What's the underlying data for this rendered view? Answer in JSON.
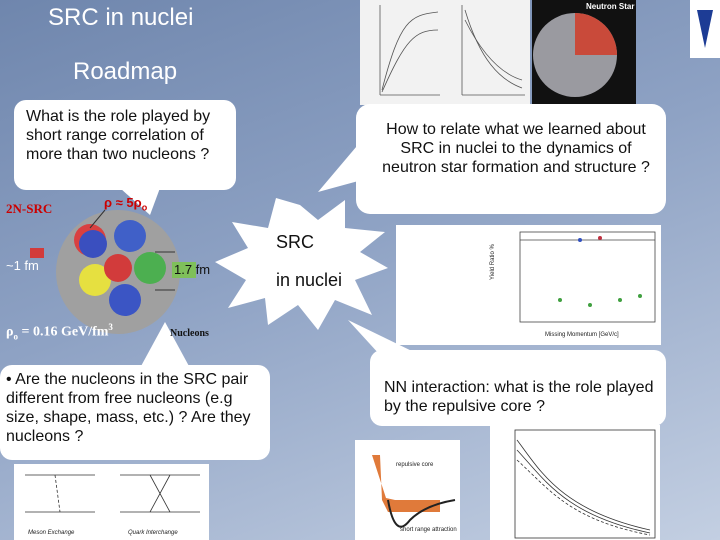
{
  "slide": {
    "title": "SRC in nuclei",
    "subtitle": "Roadmap",
    "bubbles": [
      "What is the role played by short range correlation of more than two nucleons ?",
      "How to relate what we learned about SRC in nuclei to the dynamics of neutron star formation and structure ?",
      "• Are the nucleons in the SRC pair different from free nucleons (e.g size, shape, mass, etc.) ? Are they nucleons ?",
      "NN  interaction: what is the role played by the repulsive core ?"
    ],
    "center": {
      "line1": "SRC",
      "line2": "in nuclei"
    },
    "diagram": {
      "pair_label": "2N-SRC",
      "density": {
        "rho": "ρ",
        "approx": " ≈ 5ρ",
        "sub": "o"
      },
      "short_distance": "~1 fm",
      "long_distance": "1.7 fm",
      "nucleons": "Nucleons",
      "normal_density": {
        "rho": "ρ",
        "sub": "o",
        "rest": " = 0.16 GeV/fm",
        "sup": "3"
      }
    },
    "figures": {
      "neutron_star": "Neutron Star",
      "yield_axis": "Yield Ratio %",
      "momentum_axis": "Missing Momentum [GeV/c]",
      "meson": "Meson Exchange",
      "quark": "Quark Interchange",
      "repulsive": "repulsive core",
      "attraction": "short range attraction"
    }
  }
}
